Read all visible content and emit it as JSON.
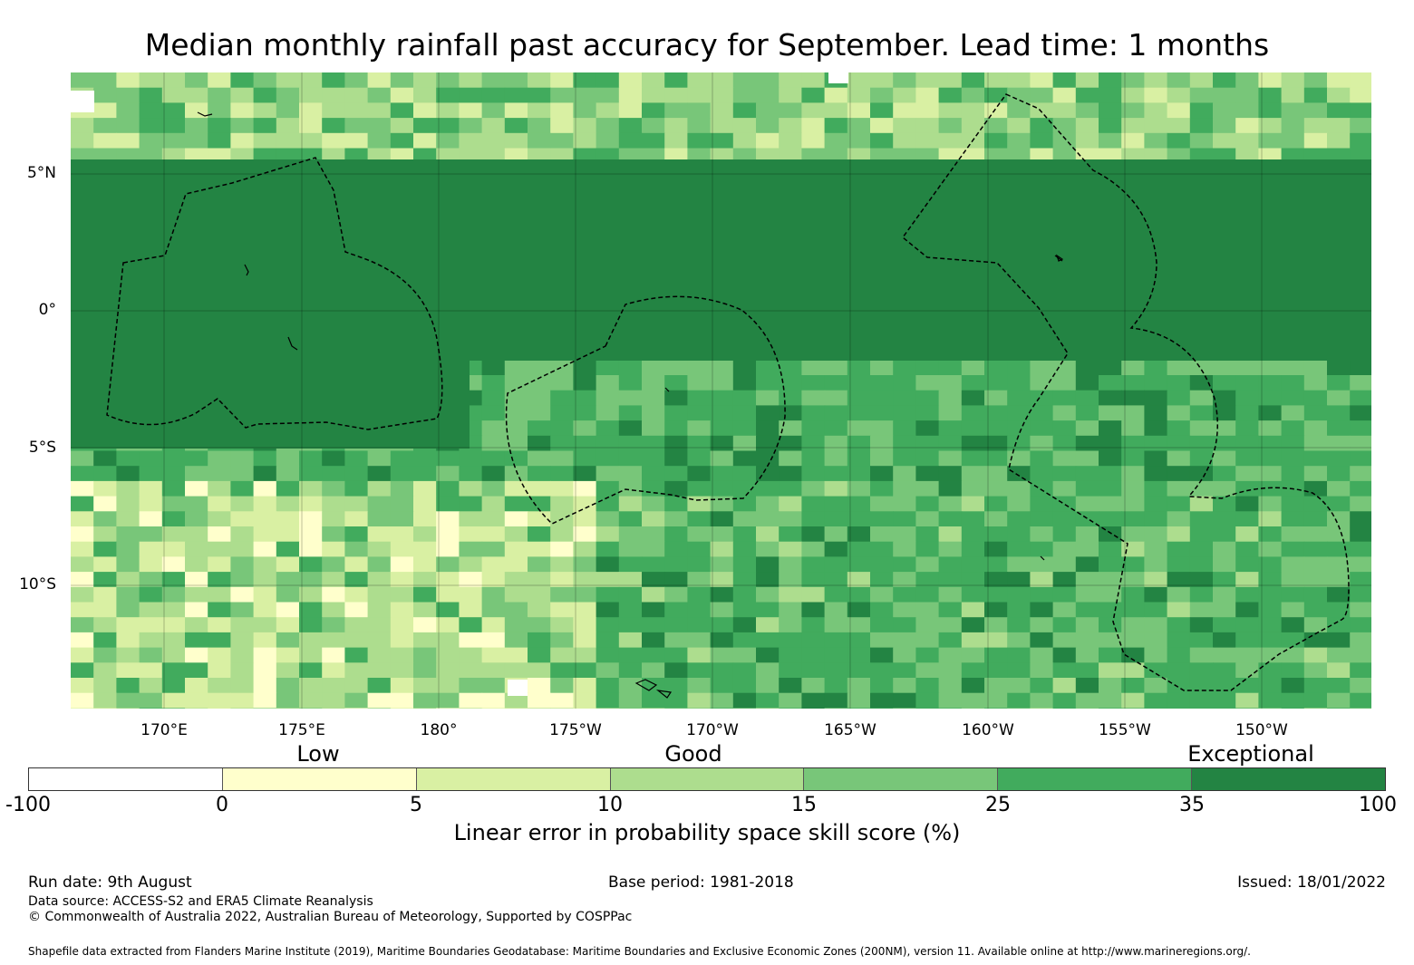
{
  "title": "Median monthly rainfall past accuracy for September. Lead time: 1 months",
  "map": {
    "lat_labels": [
      "5°N",
      "0°",
      "5°S",
      "10°S"
    ],
    "lon_labels": [
      "170°E",
      "175°E",
      "180°",
      "175°W",
      "170°W",
      "165°W",
      "160°W",
      "155°W",
      "150°W"
    ],
    "land_color": "#000000",
    "eez_boundary_style": "dashed"
  },
  "colorbar": {
    "categories": [
      "Low",
      "Good",
      "Exceptional"
    ],
    "ticks": [
      "-100",
      "0",
      "5",
      "10",
      "15",
      "25",
      "35",
      "100"
    ],
    "colors": [
      "#ffffff",
      "#ffffcc",
      "#d9f0a3",
      "#addd8e",
      "#78c679",
      "#41ab5d",
      "#238443"
    ],
    "label": "Linear error in probability space skill score (%)"
  },
  "footer": {
    "run_date": "Run date: 9th August",
    "base_period": "Base period: 1981-2018",
    "issued": "Issued: 18/01/2022",
    "data_source": "Data source: ACCESS-S2 and ERA5 Climate Reanalysis",
    "copyright": "© Commonwealth of Australia 2022, Australian Bureau of Meteorology, Supported by COSPPac",
    "shapefile": "Shapefile data extracted from Flanders Marine Institute (2019), Maritime Boundaries Geodatabase: Maritime Boundaries and Exclusive Economic Zones (200NM), version 11. Available online at http://www.marineregions.org/."
  }
}
